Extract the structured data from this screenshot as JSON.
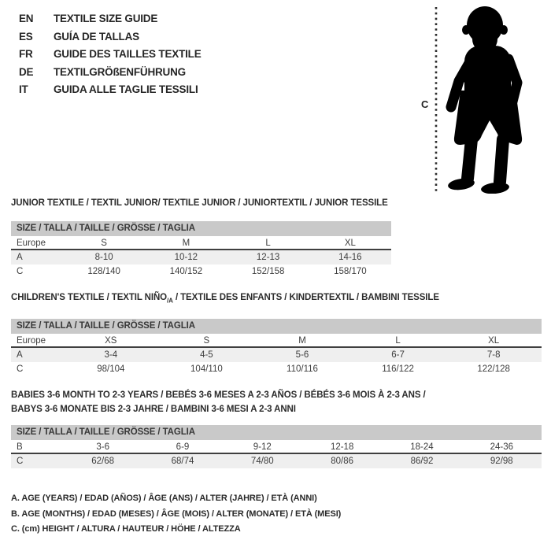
{
  "colors": {
    "bar_gray": "#c9c9c9",
    "row_shade": "#efefef",
    "line_dark": "#3f3f3f",
    "text": "#333333"
  },
  "languages": [
    {
      "code": "EN",
      "label": "TEXTILE SIZE GUIDE"
    },
    {
      "code": "ES",
      "label": "GUÍA DE TALLAS"
    },
    {
      "code": "FR",
      "label": "GUIDE DES TAILLES TEXTILE"
    },
    {
      "code": "DE",
      "label": "TEXTILGRÖßENFÜHRUNG"
    },
    {
      "code": "IT",
      "label": "GUIDA ALLE TAGLIE TESSILI"
    }
  ],
  "figure": {
    "label": "C"
  },
  "tables": [
    {
      "title": "JUNIOR TEXTILE / TEXTIL JUNIOR/ TEXTILE JUNIOR / JUNIORTEXTIL / JUNIOR TESSILE",
      "size_header": "SIZE / TALLA / TAILLE / GRÖSSE / TAGLIA",
      "rows": [
        {
          "label": "Europe",
          "values": [
            "S",
            "M",
            "L",
            "XL"
          ]
        },
        {
          "label": "A",
          "values": [
            "8-10",
            "10-12",
            "12-13",
            "14-16"
          ]
        },
        {
          "label": "C",
          "values": [
            "128/140",
            "140/152",
            "152/158",
            "158/170"
          ]
        }
      ]
    },
    {
      "title_pre": "CHILDREN'S TEXTILE / TEXTIL NIÑO",
      "title_sub": "/A",
      "title_post": " / TEXTILE DES ENFANTS / KINDERTEXTIL / BAMBINI TESSILE",
      "size_header": "SIZE / TALLA / TAILLE / GRÖSSE / TAGLIA",
      "rows": [
        {
          "label": "Europe",
          "values": [
            "XS",
            "S",
            "M",
            "L",
            "XL"
          ]
        },
        {
          "label": "A",
          "values": [
            "3-4",
            "4-5",
            "5-6",
            "6-7",
            "7-8"
          ]
        },
        {
          "label": "C",
          "values": [
            "98/104",
            "104/110",
            "110/116",
            "116/122",
            "122/128"
          ]
        }
      ]
    },
    {
      "title_line1": "BABIES 3-6 MONTH TO 2-3 YEARS / BEBÉS 3-6 MESES A 2-3 AÑOS / BÉBÉS 3-6 MOIS À 2-3 ANS /",
      "title_line2": "BABYS 3-6 MONATE BIS 2-3 JAHRE / BAMBINI 3-6 MESI A 2-3 ANNI",
      "size_header": "SIZE / TALLA / TAILLE / GRÖSSE / TAGLIA",
      "rows": [
        {
          "label": "B",
          "values": [
            "3-6",
            "6-9",
            "9-12",
            "12-18",
            "18-24",
            "24-36"
          ]
        },
        {
          "label": "C",
          "values": [
            "62/68",
            "68/74",
            "74/80",
            "80/86",
            "86/92",
            "92/98"
          ]
        }
      ]
    }
  ],
  "notes": [
    "A. AGE (YEARS) / EDAD (AÑOS) / ÂGE (ANS) / ALTER (JAHRE) / ETÀ (ANNI)",
    "B. AGE (MONTHS) / EDAD (MESES) / ÂGE (MOIS) / ALTER (MONATE) / ETÀ (MESI)",
    "C. (cm) HEIGHT / ALTURA / HAUTEUR / HÖHE / ALTEZZA"
  ]
}
